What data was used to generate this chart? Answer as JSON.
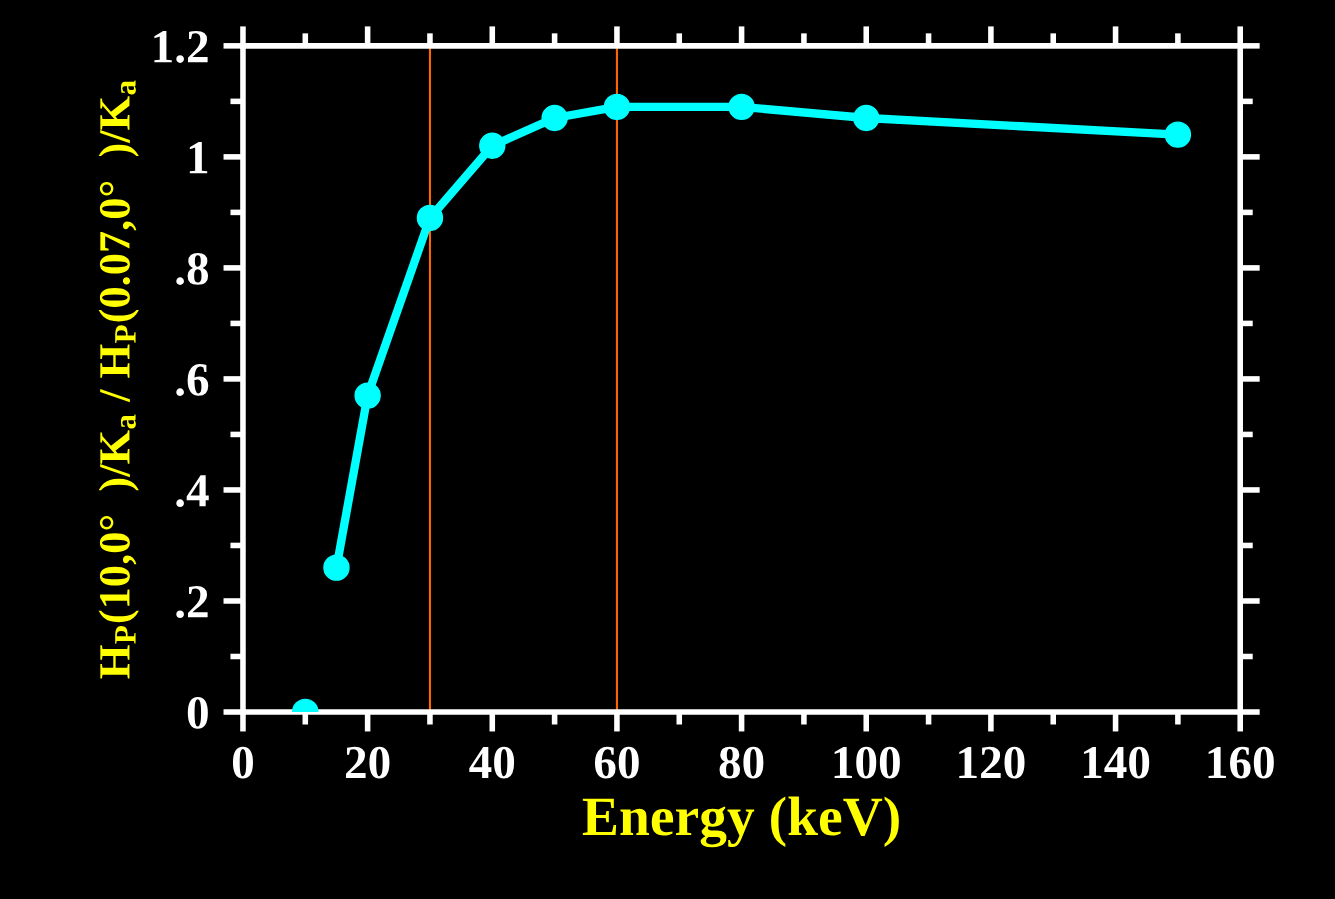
{
  "chart_data": {
    "type": "line",
    "xlabel": "Energy (keV)",
    "ylabel": "H$_{P}$(10,0°  )/K$_{a}$ / H$_{P}$(0.07,0°  )/K$_{a}$",
    "series": [
      {
        "type": "scatter",
        "color": "#00ffff",
        "x": [
          10
        ],
        "values": [
          0
        ]
      },
      {
        "color": "#00ffff",
        "x": [
          15,
          20,
          30,
          40,
          50,
          60,
          80,
          100,
          150
        ],
        "values": [
          0.26,
          0.57,
          0.89,
          1.02,
          1.07,
          1.09,
          1.09,
          1.07,
          1.04
        ]
      }
    ],
    "marker": "circle",
    "line_style": "solid",
    "grid": false,
    "legend": false,
    "xlim": [
      0,
      160
    ],
    "xticks": [
      0,
      20,
      40,
      60,
      80,
      100,
      120,
      140,
      160
    ],
    "ylim": [
      0,
      1.2
    ],
    "yticks": [
      0,
      {
        "value": 0.2,
        "label": ".2"
      },
      {
        "value": 0.4,
        "label": ".4"
      },
      {
        "value": 0.6,
        "label": ".6"
      },
      {
        "value": 0.8,
        "label": ".8"
      },
      1,
      1.2
    ],
    "ref_lines": [
      {
        "axis": "x",
        "value": 30,
        "color": "#ff6600"
      },
      {
        "axis": "x",
        "value": 60,
        "color": "#ff6600"
      }
    ]
  }
}
